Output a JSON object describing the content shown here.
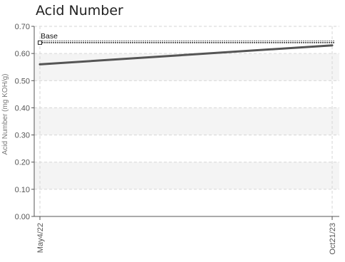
{
  "chart_data": {
    "type": "line",
    "title": "Acid Number",
    "ylabel": "Acid Number (mg KOH/g)",
    "xlabel": "",
    "ylim": [
      0,
      0.7
    ],
    "y_ticks": [
      "0.00",
      "0.10",
      "0.20",
      "0.30",
      "0.40",
      "0.50",
      "0.60",
      "0.70"
    ],
    "x_ticks": [
      "May4/22",
      "Oct21/23"
    ],
    "grid": true,
    "series": [
      {
        "values": [
          0.56,
          0.63
        ],
        "color": "#555555"
      }
    ],
    "reference_lines": [
      {
        "name": "Base",
        "value": 0.64,
        "color": "#333333",
        "style": "dashed"
      }
    ]
  }
}
